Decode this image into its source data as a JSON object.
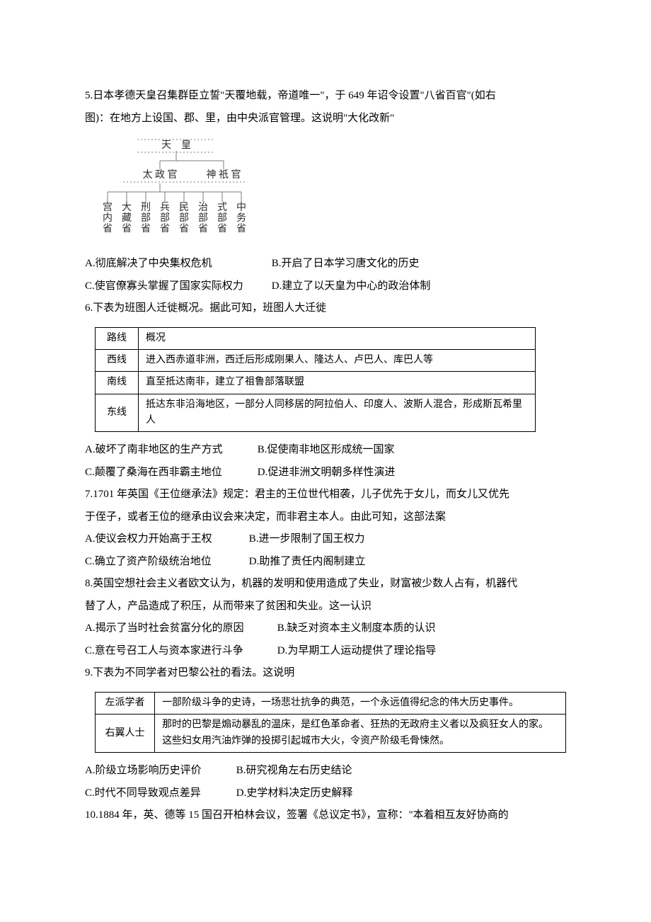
{
  "q5": {
    "stem1": "5.日本孝德天皇召集群臣立誓\"天覆地载，帝道唯一\"，于 649 年诏令设置\"八省百官\"(如右",
    "stem2": "图)：在地方上设国、郡、里，由中央派官管理。这说明\"大化改新\"",
    "diagram": {
      "top": "天　皇",
      "mid_left": "太 政 官",
      "mid_right": "神 祇 官",
      "leaves": [
        "宫内省",
        "大藏省",
        "刑部省",
        "兵部省",
        "民部省",
        "治部省",
        "式部省",
        "中务省"
      ],
      "line_color": "#7b7b7b",
      "dotted_color": "#9a9a9a",
      "text_color": "#2b2b2b",
      "font_size": 14,
      "font_family": "SimSun"
    },
    "optA": "A.彻底解决了中央集权危机",
    "optB": "B.开启了日本学习唐文化的历史",
    "optC": "C.使官僚寡头掌握了国家实际权力",
    "optD": "D.建立了以天皇为中心的政治体制",
    "row1_gap": 260,
    "optA_w": 260,
    "optC_w": 260
  },
  "q6": {
    "stem": "6.下表为班图人迁徙概况。据此可知，班图人大迁徙",
    "headers": [
      "路线",
      "概况"
    ],
    "rows": [
      [
        "西线",
        "进入西赤道非洲，西迁后形成刚果人、隆达人、卢巴人、库巴人等"
      ],
      [
        "南线",
        "直至抵达南非，建立了祖鲁部落联盟"
      ],
      [
        "东线",
        "抵达东非沿海地区，一部分人同移居的阿拉伯人、印度人、波斯人混合，形成斯瓦希里人"
      ]
    ],
    "optA": "A.破坏了南非地区的生产方式",
    "optB": "B.促使南非地区形成统一国家",
    "optC": "C.颠覆了桑海在西非霸主地位",
    "optD": "D.促进非洲文明朝多样性演进",
    "optA_w": 240
  },
  "q7": {
    "stem1": "7.1701 年英国《王位继承法》规定：君主的王位世代相袭，儿子优先于女儿，而女儿又优先",
    "stem2": "于侄子，或者王位的继承由议会来决定，而非君主本人。由此可知，这部法案",
    "optA": "A.使议会权力开始高于王权",
    "optB": "B.进一步限制了国王权力",
    "optC": "C.确立了资产阶级统治地位",
    "optD": "D.助推了责任内阁制建立",
    "optA_w": 228
  },
  "q8": {
    "stem1": "8.英国空想社会主义者欧文认为，机器的发明和使用造成了失业，财富被少数人占有，机器代",
    "stem2": "替了人，产品造成了积压，从而带来了贫困和失业。这一认识",
    "optA": "A.揭示了当时社会贫富分化的原因",
    "optB": "B.缺乏对资本主义制度本质的认识",
    "optC": "C.意在号召工人与资本家进行斗争",
    "optD": "D.为早期工人运动提供了理论指导",
    "optA_w": 268
  },
  "q9": {
    "stem": "9.下表为不同学者对巴黎公社的看法。这说明",
    "rows": [
      [
        "左派学者",
        "一部阶级斗争的史诗，一场悲壮抗争的典范，一个永远值得纪念的伟大历史事件。"
      ],
      [
        "右翼人士",
        "那时的巴黎是煽动暴乱的温床，是红色革命者、狂热的无政府主义者以及疯狂女人的家。这些妇女用汽油炸弹的投掷引起城市大火，令资产阶级毛骨悚然。"
      ]
    ],
    "optA": "A.阶级立场影响历史评价",
    "optB": "B.研究视角左右历史结论",
    "optC": "C.时代不同导致观点差异",
    "optD": "D.史学材料决定历史解释",
    "optA_w": 210
  },
  "q10": {
    "stem": "10.1884 年，英、德等 15 国召开柏林会议，签署《总议定书》，宣称：\"本着相互友好协商的"
  }
}
